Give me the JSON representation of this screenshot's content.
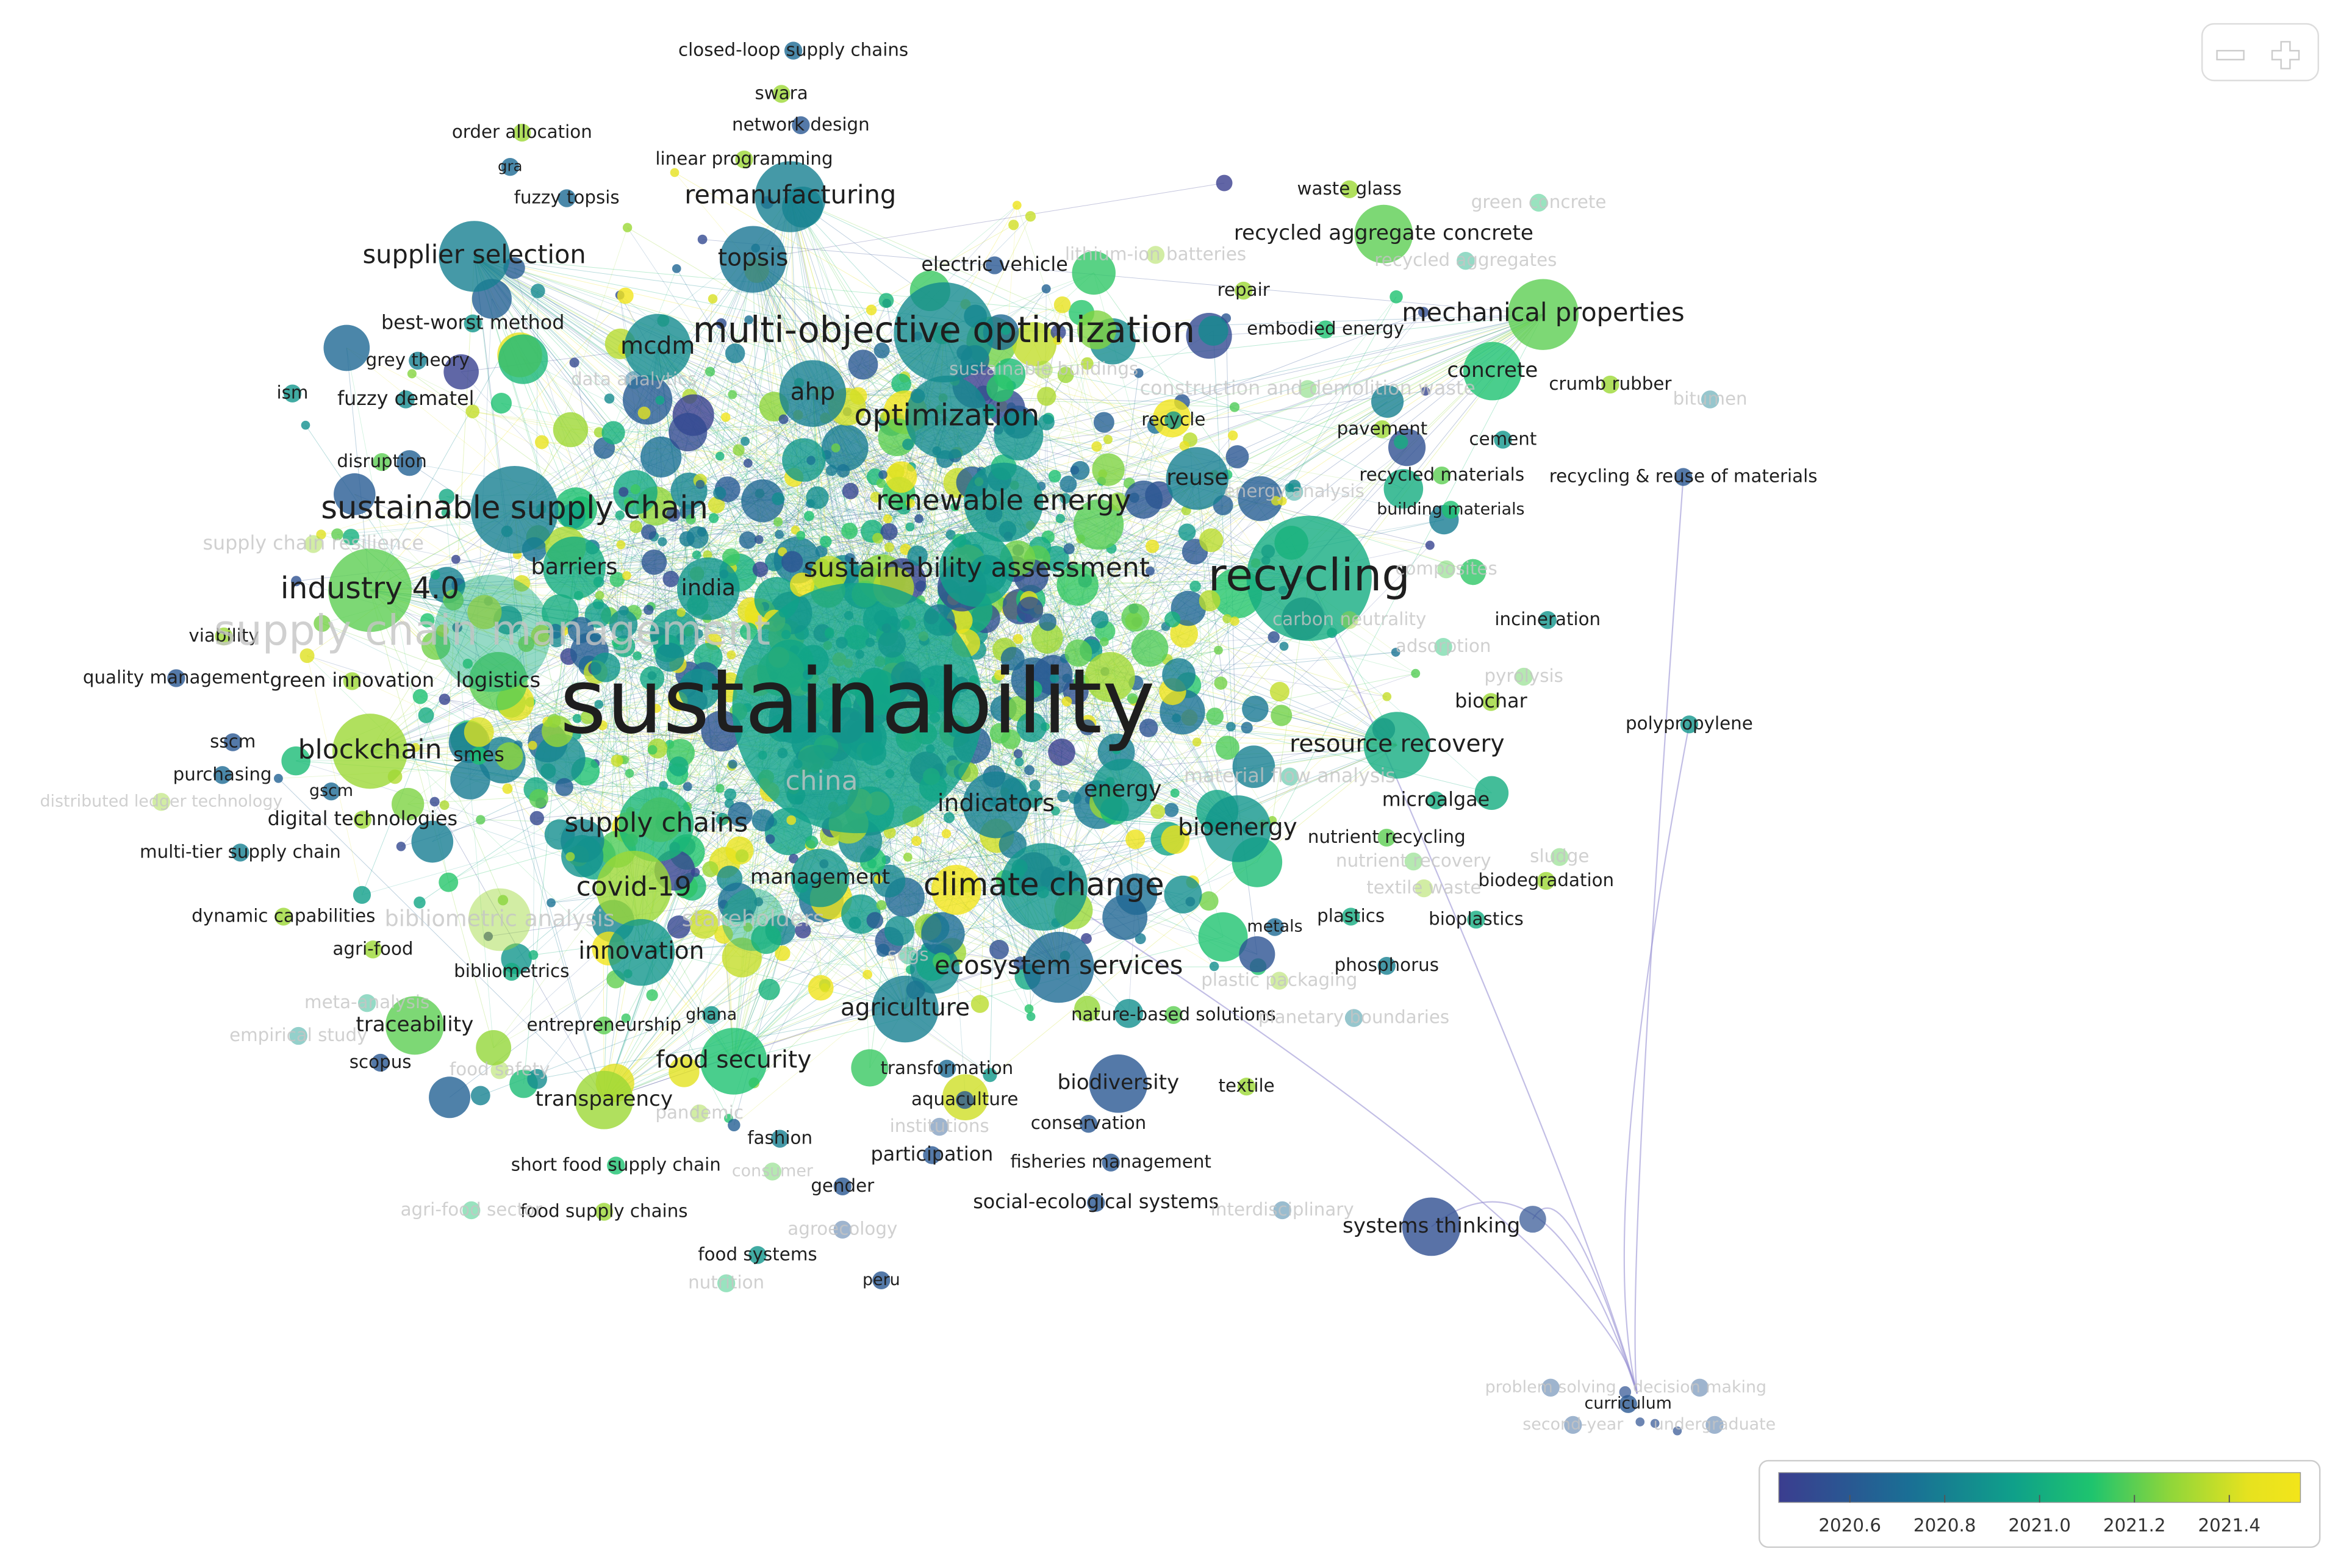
{
  "nodes": [
    {
      "label": "sustainability",
      "year": 2020.95
    },
    {
      "label": "recycling",
      "year": 2021.0
    },
    {
      "label": "multi-objective optimization",
      "year": 2020.85
    },
    {
      "label": "sustainable supply chain",
      "year": 2020.8
    },
    {
      "label": "industry 4.0",
      "year": 2021.2
    },
    {
      "label": "optimization",
      "year": 2020.85
    },
    {
      "label": "renewable energy",
      "year": 2020.9
    },
    {
      "label": "climate change",
      "year": 2020.9
    },
    {
      "label": "sustainability assessment",
      "year": 2020.95
    },
    {
      "label": "supply chains",
      "year": 2021.05
    },
    {
      "label": "blockchain",
      "year": 2021.3
    },
    {
      "label": "covid-19",
      "year": 2021.3
    },
    {
      "label": "ecosystem services",
      "year": 2020.7
    },
    {
      "label": "agriculture",
      "year": 2020.8
    },
    {
      "label": "food security",
      "year": 2021.1
    },
    {
      "label": "mechanical properties",
      "year": 2021.2
    },
    {
      "label": "supplier selection",
      "year": 2020.8
    },
    {
      "label": "remanufacturing",
      "year": 2020.8
    },
    {
      "label": "topsis",
      "year": 2020.75
    },
    {
      "label": "mcdm",
      "year": 2020.85
    },
    {
      "label": "ahp",
      "year": 2020.8
    },
    {
      "label": "innovation",
      "year": 2020.9
    },
    {
      "label": "indicators",
      "year": 2020.8
    },
    {
      "label": "resource recovery",
      "year": 2021.0
    },
    {
      "label": "bioenergy",
      "year": 2020.9
    },
    {
      "label": "energy",
      "year": 2020.9
    },
    {
      "label": "reuse",
      "year": 2020.8
    },
    {
      "label": "barriers",
      "year": 2021.0
    },
    {
      "label": "india",
      "year": 2020.9
    },
    {
      "label": "transparency",
      "year": 2021.3
    },
    {
      "label": "traceability",
      "year": 2021.2
    },
    {
      "label": "management",
      "year": 2020.9
    },
    {
      "label": "biodiversity",
      "year": 2020.6
    },
    {
      "label": "recycled aggregate concrete",
      "year": 2021.2
    },
    {
      "label": "concrete",
      "year": 2021.1
    },
    {
      "label": "logistics",
      "year": 2021.2
    },
    {
      "label": "green innovation",
      "year": 2021.3
    },
    {
      "label": "smes",
      "year": 2021.1
    },
    {
      "label": "digital technologies",
      "year": 2021.3
    },
    {
      "label": "fuzzy dematel",
      "year": 2020.85
    },
    {
      "label": "best-worst method",
      "year": 2020.9
    },
    {
      "label": "grey theory",
      "year": 2020.8
    },
    {
      "label": "ism",
      "year": 2020.9
    },
    {
      "label": "fuzzy topsis",
      "year": 2020.7
    },
    {
      "label": "disruption",
      "year": 2021.2
    },
    {
      "label": "viability",
      "year": 2021.3
    },
    {
      "label": "quality management",
      "year": 2020.6
    },
    {
      "label": "purchasing",
      "year": 2020.7
    },
    {
      "label": "sscm",
      "year": 2020.6
    },
    {
      "label": "gscm",
      "year": 2020.7
    },
    {
      "label": "multi-tier supply chain",
      "year": 2020.8
    },
    {
      "label": "dynamic capabilities",
      "year": 2021.3
    },
    {
      "label": "agri-food",
      "year": 2021.3
    },
    {
      "label": "bibliometrics",
      "year": 2021.0
    },
    {
      "label": "entrepreneurship",
      "year": 2021.2
    },
    {
      "label": "scopus",
      "year": 2020.6
    },
    {
      "label": "ghana",
      "year": 2020.9
    },
    {
      "label": "transformation",
      "year": 2020.7
    },
    {
      "label": "aquaculture",
      "year": 2020.6
    },
    {
      "label": "conservation",
      "year": 2020.6
    },
    {
      "label": "fashion",
      "year": 2020.8
    },
    {
      "label": "participation",
      "year": 2020.6
    },
    {
      "label": "fisheries management",
      "year": 2020.6
    },
    {
      "label": "gender",
      "year": 2020.6
    },
    {
      "label": "social-ecological systems",
      "year": 2020.6
    },
    {
      "label": "short food supply chain",
      "year": 2021.1
    },
    {
      "label": "food supply chains",
      "year": 2021.3
    },
    {
      "label": "food systems",
      "year": 2020.9
    },
    {
      "label": "peru",
      "year": 2020.6
    },
    {
      "label": "systems thinking",
      "year": 2020.55
    },
    {
      "label": "curriculum",
      "year": 2020.6
    },
    {
      "label": "nature-based solutions",
      "year": 2021.2
    },
    {
      "label": "textile",
      "year": 2021.3
    },
    {
      "label": "phosphorus",
      "year": 2020.8
    },
    {
      "label": "plastics",
      "year": 2021.0
    },
    {
      "label": "metals",
      "year": 2020.7
    },
    {
      "label": "bioplastics",
      "year": 2021.0
    },
    {
      "label": "biodegradation",
      "year": 2021.3
    },
    {
      "label": "textile waste",
      "year": 2021.3
    },
    {
      "label": "microalgae",
      "year": 2021.0
    },
    {
      "label": "nutrient recycling",
      "year": 2021.2
    },
    {
      "label": "polypropylene",
      "year": 2020.9
    },
    {
      "label": "biochar",
      "year": 2021.3
    },
    {
      "label": "incineration",
      "year": 2020.9
    },
    {
      "label": "recycling & reuse of materials",
      "year": 2020.6
    },
    {
      "label": "recycled materials",
      "year": 2021.2
    },
    {
      "label": "building materials",
      "year": 2021.1
    },
    {
      "label": "cement",
      "year": 2020.9
    },
    {
      "label": "pavement",
      "year": 2021.3
    },
    {
      "label": "crumb rubber",
      "year": 2021.3
    },
    {
      "label": "bitumen",
      "year": 2020.8
    },
    {
      "label": "embodied energy",
      "year": 2021.1
    },
    {
      "label": "repair",
      "year": 2021.3
    },
    {
      "label": "waste glass",
      "year": 2021.3
    },
    {
      "label": "green concrete",
      "year": 2021.1
    },
    {
      "label": "recycled aggregates",
      "year": 2021.0
    },
    {
      "label": "recycle",
      "year": 2020.9
    },
    {
      "label": "electric vehicle",
      "year": 2020.6
    },
    {
      "label": "linear programming",
      "year": 2021.3
    },
    {
      "label": "network design",
      "year": 2020.6
    },
    {
      "label": "swara",
      "year": 2021.3
    },
    {
      "label": "closed-loop supply chains",
      "year": 2020.7
    },
    {
      "label": "order allocation",
      "year": 2021.3
    },
    {
      "label": "gra",
      "year": 2020.7
    },
    {
      "label": "supply chain management",
      "year": 2021.0
    },
    {
      "label": "china",
      "year": 2020.9
    },
    {
      "label": "bibliometric analysis",
      "year": 2021.3
    },
    {
      "label": "stakeholders",
      "year": 2021.0
    },
    {
      "label": "construction and demolition waste",
      "year": 2021.2
    },
    {
      "label": "lithium-ion batteries",
      "year": 2021.3
    },
    {
      "label": "data analytics",
      "year": 2020.7
    },
    {
      "label": "sustainable buildings",
      "year": 2021.3
    },
    {
      "label": "energy analysis",
      "year": 2020.9
    },
    {
      "label": "carbon neutrality",
      "year": 2021.3
    },
    {
      "label": "supply chain resilience",
      "year": 2021.3
    },
    {
      "label": "sdgs",
      "year": 2021.0
    },
    {
      "label": "pandemic",
      "year": 2021.3
    },
    {
      "label": "consumer",
      "year": 2021.2
    },
    {
      "label": "food safety",
      "year": 2021.3
    },
    {
      "label": "agri-food sector",
      "year": 2021.1
    },
    {
      "label": "empirical study",
      "year": 2020.9
    },
    {
      "label": "meta-analysis",
      "year": 2021.0
    },
    {
      "label": "agroecology",
      "year": 2020.6
    },
    {
      "label": "nutrition",
      "year": 2021.1
    },
    {
      "label": "interdisciplinary",
      "year": 2020.7
    },
    {
      "label": "institutions",
      "year": 2020.6
    },
    {
      "label": "plastic packaging",
      "year": 2021.3
    },
    {
      "label": "planetary boundaries",
      "year": 2020.8
    },
    {
      "label": "material flow analysis",
      "year": 2021.0
    },
    {
      "label": "nutrient recovery",
      "year": 2021.2
    },
    {
      "label": "sludge",
      "year": 2021.2
    },
    {
      "label": "pyrolysis",
      "year": 2021.2
    },
    {
      "label": "adsorption",
      "year": 2021.1
    },
    {
      "label": "composites",
      "year": 2021.2
    },
    {
      "label": "distributed ledger technology",
      "year": 2021.3
    },
    {
      "label": "problem solving",
      "year": 2020.6
    },
    {
      "label": "decision making",
      "year": 2020.6
    },
    {
      "label": "second-year",
      "year": 2020.6
    },
    {
      "label": "undergraduate",
      "year": 2020.6
    }
  ],
  "colorbar": {
    "lim": [
      2020.45,
      2021.55
    ],
    "ticks": [
      2020.6,
      2020.8,
      {
        "value": 2021,
        "label": "2021.0"
      },
      2021.2,
      2021.4
    ]
  }
}
